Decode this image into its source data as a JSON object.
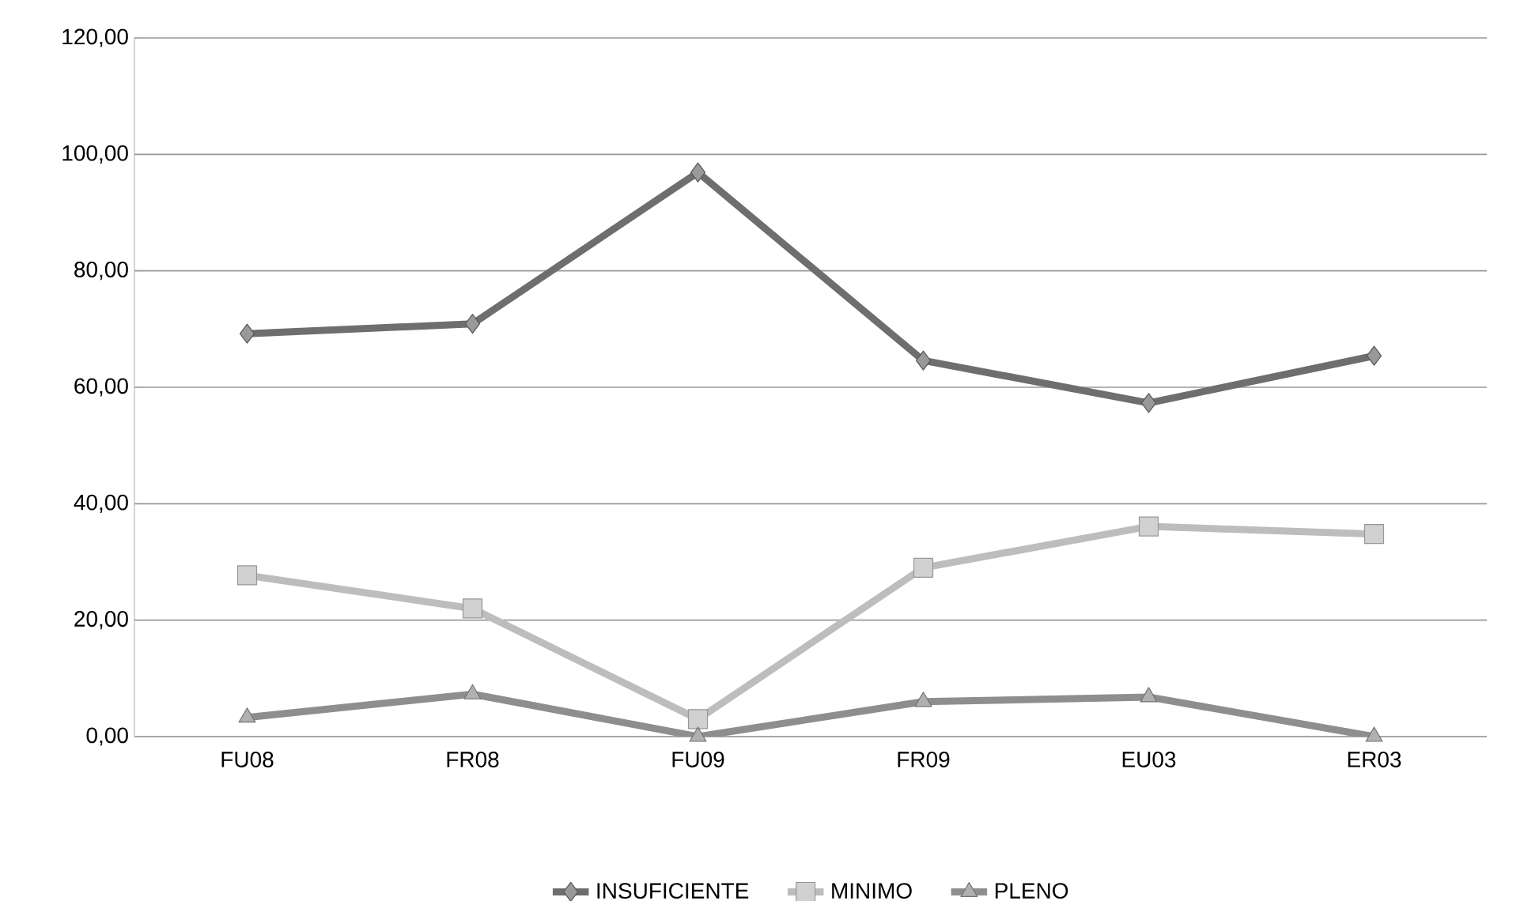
{
  "chart_data": {
    "type": "line",
    "categories": [
      "FU08",
      "FR08",
      "FU09",
      "FR09",
      "EU03",
      "ER03"
    ],
    "series": [
      {
        "name": "INSUFICIENTE",
        "color": "#6e6e6e",
        "marker": "diamond",
        "values": [
          69.2,
          70.9,
          96.9,
          64.6,
          57.3,
          65.4
        ]
      },
      {
        "name": "MINIMO",
        "color": "#bdbdbd",
        "marker": "square",
        "values": [
          27.7,
          22.0,
          3.0,
          29.0,
          36.1,
          34.8
        ]
      },
      {
        "name": "PLENO",
        "color": "#8e8e8e",
        "marker": "triangle",
        "values": [
          3.3,
          7.3,
          0.0,
          6.0,
          6.8,
          0.0
        ]
      }
    ],
    "ylim": [
      0,
      120
    ],
    "yticks": [
      {
        "value": 0,
        "label": "0,00"
      },
      {
        "value": 20,
        "label": "20,00"
      },
      {
        "value": 40,
        "label": "40,00"
      },
      {
        "value": 60,
        "label": "60,00"
      },
      {
        "value": 80,
        "label": "80,00"
      },
      {
        "value": 100,
        "label": "100,00"
      },
      {
        "value": 120,
        "label": "120,00"
      }
    ],
    "grid": "y",
    "legend": "bottom",
    "line_style": "solid"
  }
}
